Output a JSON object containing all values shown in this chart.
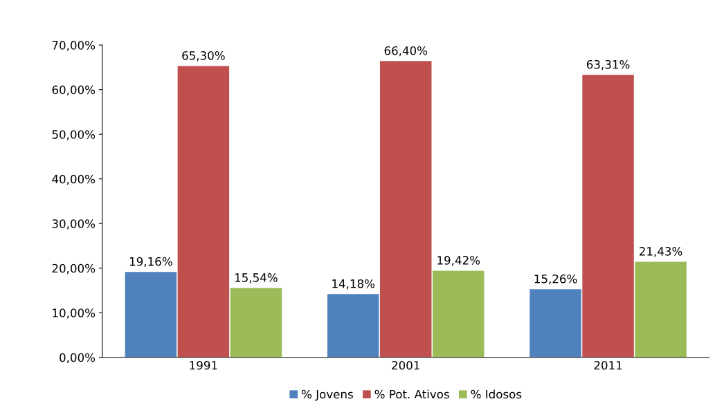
{
  "chart_data": {
    "type": "bar",
    "categories": [
      "1991",
      "2001",
      "2011"
    ],
    "series": [
      {
        "name": "% Jovens",
        "color": "#4f81bd",
        "values": [
          19.16,
          14.18,
          15.26
        ],
        "value_labels": [
          "19,16%",
          "14,18%",
          "15,26%"
        ]
      },
      {
        "name": "% Pot. Ativos",
        "color": "#c0504d",
        "values": [
          65.3,
          66.4,
          63.31
        ],
        "value_labels": [
          "65,30%",
          "66,40%",
          "63,31%"
        ]
      },
      {
        "name": "% Idosos",
        "color": "#9bbb59",
        "values": [
          15.54,
          19.42,
          21.43
        ],
        "value_labels": [
          "15,54%",
          "19,42%",
          "21,43%"
        ]
      }
    ],
    "ylim": [
      0,
      70
    ],
    "yticks": [
      {
        "value": 0,
        "label": "0,00%"
      },
      {
        "value": 10,
        "label": "10,00%"
      },
      {
        "value": 20,
        "label": "20,00%"
      },
      {
        "value": 30,
        "label": "30,00%"
      },
      {
        "value": 40,
        "label": "40,00%"
      },
      {
        "value": 50,
        "label": "50,00%"
      },
      {
        "value": 60,
        "label": "60,00%"
      },
      {
        "value": 70,
        "label": "70,00%"
      }
    ],
    "grid": false,
    "legend": "bottom"
  }
}
